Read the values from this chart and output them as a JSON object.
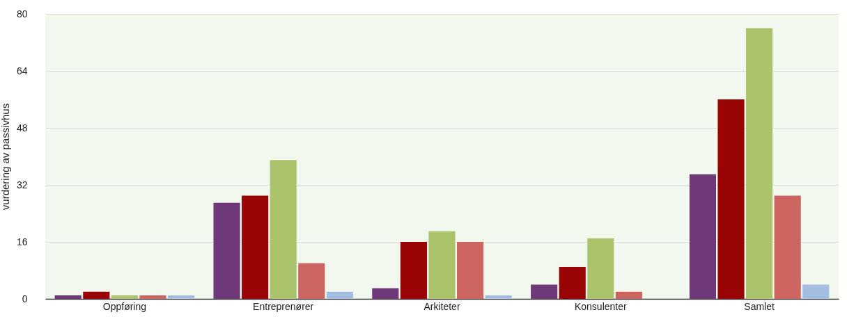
{
  "chart_data": {
    "type": "bar",
    "ylabel": "vurdering av passivhus",
    "categories": [
      "Oppføring",
      "Entreprenører",
      "Arkiteter",
      "Konsulenter",
      "Samlet"
    ],
    "series": [
      {
        "color": "#6f3878",
        "values": [
          1,
          27,
          3,
          4,
          35
        ]
      },
      {
        "color": "#990505",
        "values": [
          2,
          29,
          16,
          9,
          56
        ]
      },
      {
        "color": "#abc46b",
        "values": [
          1,
          39,
          19,
          17,
          76
        ]
      },
      {
        "color": "#cc6460",
        "values": [
          1,
          10,
          16,
          2,
          29
        ]
      },
      {
        "color": "#a4bde0",
        "values": [
          1,
          2,
          1,
          0,
          4
        ]
      }
    ],
    "ylim": [
      0,
      80
    ],
    "yticks": [
      0,
      16,
      32,
      48,
      64,
      80
    ],
    "grid": "y",
    "legend": false
  }
}
